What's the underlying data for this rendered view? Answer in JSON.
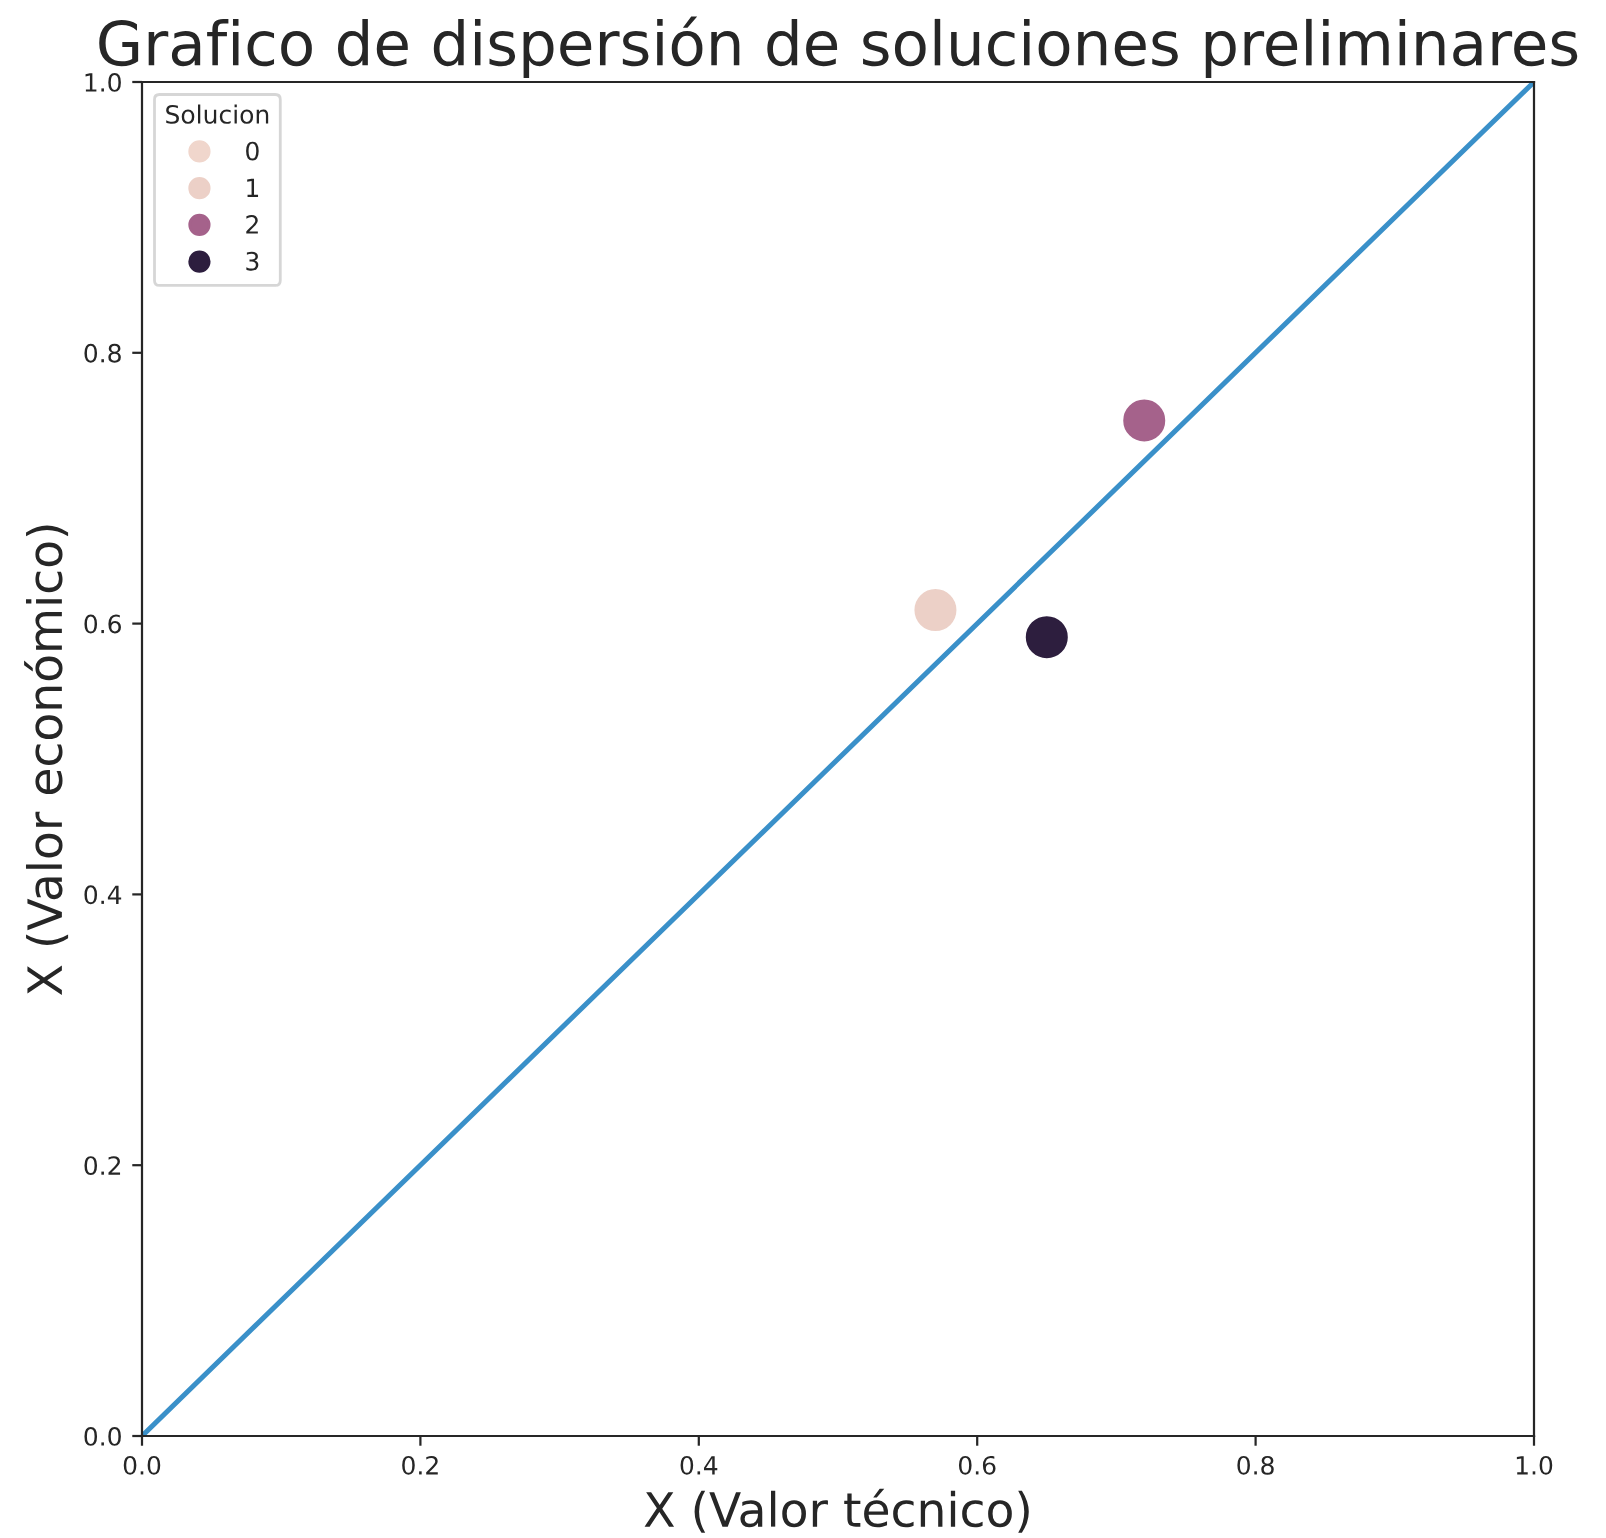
{
  "chart_data": {
    "type": "scatter",
    "title": "Grafico de dispersión de soluciones preliminares",
    "xlabel": "X (Valor técnico)",
    "ylabel": "X (Valor económico)",
    "legend_title": "Solucion",
    "legend": "top left",
    "marker": "circle",
    "grid": false,
    "xlim": [
      0.0,
      1.0
    ],
    "ylim": [
      0.0,
      1.0
    ],
    "xticks": [
      {
        "value": 0,
        "label": "0.0"
      },
      {
        "value": 0.2,
        "label": "0.2"
      },
      {
        "value": 0.4,
        "label": "0.4"
      },
      {
        "value": 0.6,
        "label": "0.6"
      },
      {
        "value": 0.8,
        "label": "0.8"
      },
      {
        "value": 1,
        "label": "1.0"
      }
    ],
    "yticks": [
      {
        "value": 0,
        "label": "0.0"
      },
      {
        "value": 0.2,
        "label": "0.2"
      },
      {
        "value": 0.4,
        "label": "0.4"
      },
      {
        "value": 0.6,
        "label": "0.6"
      },
      {
        "value": 0.8,
        "label": "0.8"
      },
      {
        "value": 1,
        "label": "1.0"
      }
    ],
    "series": [
      {
        "name": "0",
        "color": "#f0d6cc"
      },
      {
        "name": "1",
        "color": "#ecd0c7",
        "x": [
          0.57
        ],
        "values": [
          0.61
        ]
      },
      {
        "name": "2",
        "color": "#a5628b",
        "x": [
          0.72
        ],
        "values": [
          0.75
        ]
      },
      {
        "name": "3",
        "color": "#2d1e3e",
        "x": [
          0.65
        ],
        "values": [
          0.59
        ]
      },
      {
        "type": "line",
        "marker": "none",
        "color": "#3a90c9",
        "x": [
          0,
          1
        ],
        "values": [
          0,
          1
        ]
      }
    ]
  }
}
